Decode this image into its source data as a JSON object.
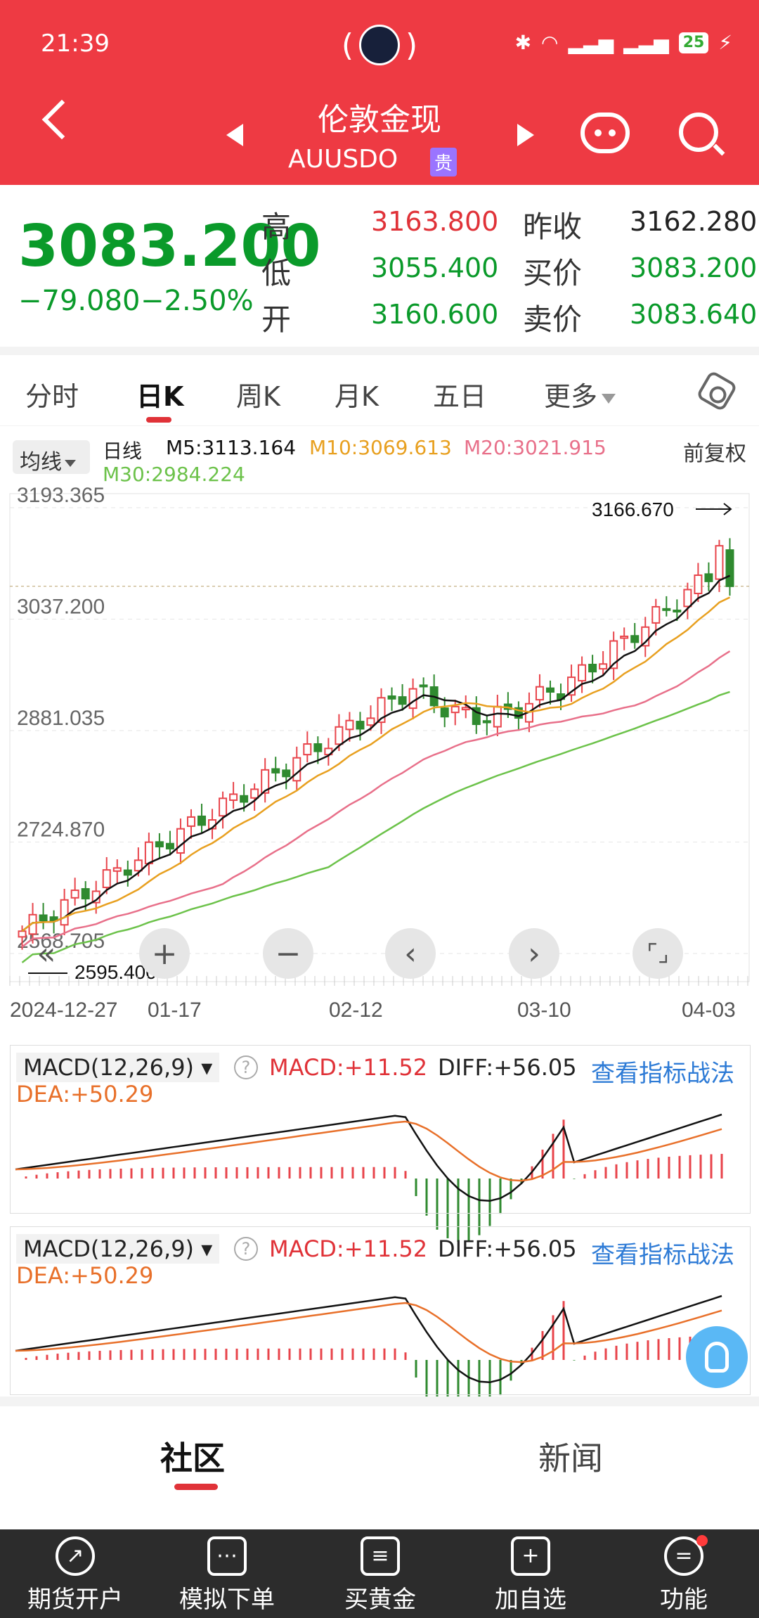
{
  "status": {
    "time": "21:39",
    "battery": "25"
  },
  "header": {
    "title": "伦敦金现",
    "code": "AUUSDO",
    "badge": "贵"
  },
  "quote": {
    "price": "3083.200",
    "change": "−79.080",
    "change_pct": "−2.50%",
    "high_label": "高",
    "high": "3163.800",
    "low_label": "低",
    "low": "3055.400",
    "open_label": "开",
    "open": "3160.600",
    "prev_close_label": "昨收",
    "prev_close": "3162.280",
    "bid_label": "买价",
    "bid": "3083.200",
    "ask_label": "卖价",
    "ask": "3083.640"
  },
  "tabs": [
    "分时",
    "日K",
    "周K",
    "月K",
    "五日",
    "更多"
  ],
  "ma": {
    "button": "均线",
    "period": "日线",
    "m5": "M5:3113.164",
    "m10": "M10:3069.613",
    "m20": "M20:3021.915",
    "m30": "M30:2984.224",
    "adjust": "前复权"
  },
  "kchart": {
    "y_ticks": [
      "3193.365",
      "3037.200",
      "2881.035",
      "2724.870",
      "2568.705"
    ],
    "x_ticks": [
      "2024-12-27",
      "01-17",
      "02-12",
      "03-10",
      "04-03"
    ],
    "high_marker": "3166.670",
    "low_marker": "2595.400",
    "colors": {
      "up": "#e8444b",
      "down": "#2f8a2f",
      "m5": "#111111",
      "m10": "#e8a020",
      "m20": "#e8708a",
      "m30": "#6cc24a"
    }
  },
  "macd": {
    "selector": "MACD(12,26,9)",
    "macd": "MACD:+11.52",
    "diff": "DIFF:+56.05",
    "dea": "DEA:+50.29",
    "link": "查看指标战法"
  },
  "community": {
    "tab1": "社区",
    "tab2": "新闻"
  },
  "bottom_nav": [
    "期货开户",
    "模拟下单",
    "买黄金",
    "加自选",
    "功能"
  ],
  "chart_data": {
    "type": "candlestick",
    "title": "",
    "y_ticks": [
      3193.365,
      3037.2,
      2881.035,
      2724.87,
      2568.705
    ],
    "ylim": [
      2568.705,
      3193.365
    ],
    "x_ticks": [
      "2024-12-27",
      "01-17",
      "02-12",
      "03-10",
      "04-03"
    ],
    "marked_high": 3166.67,
    "marked_low": 2595.4,
    "last_close": 3083.2
  }
}
